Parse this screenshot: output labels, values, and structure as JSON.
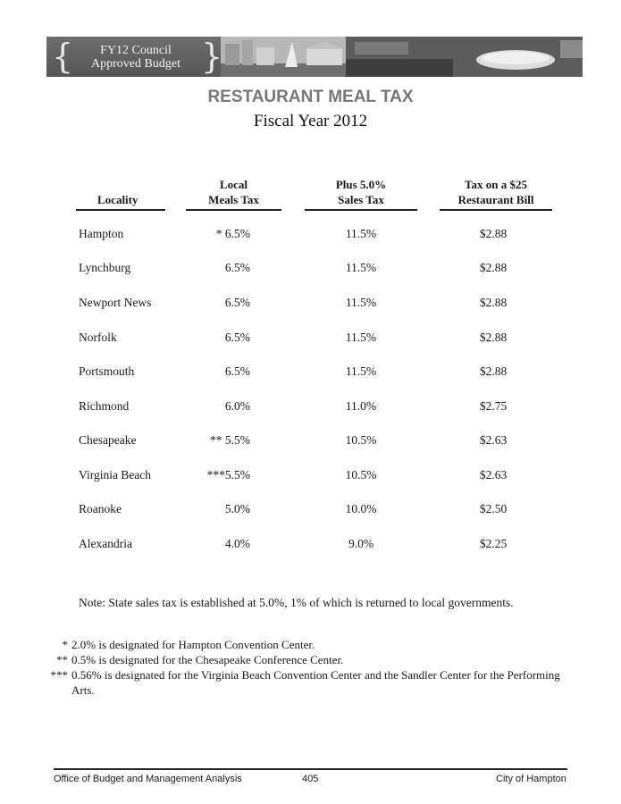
{
  "banner": {
    "line1": "FY12 Council",
    "line2": "Approved Budget"
  },
  "title": "RESTAURANT MEAL TAX",
  "subtitle": "Fiscal Year 2012",
  "columns": {
    "locality": "Locality",
    "meals_1": "Local",
    "meals_2": "Meals Tax",
    "sales_1": "Plus 5.0%",
    "sales_2": "Sales Tax",
    "bill_1": "Tax on a $25",
    "bill_2": "Restaurant Bill"
  },
  "rows": [
    {
      "locality": "Hampton",
      "meals": "* 6.5%",
      "sales": "11.5%",
      "bill": "$2.88"
    },
    {
      "locality": "Lynchburg",
      "meals": "6.5%",
      "sales": "11.5%",
      "bill": "$2.88"
    },
    {
      "locality": "Newport News",
      "meals": "6.5%",
      "sales": "11.5%",
      "bill": "$2.88"
    },
    {
      "locality": "Norfolk",
      "meals": "6.5%",
      "sales": "11.5%",
      "bill": "$2.88"
    },
    {
      "locality": "Portsmouth",
      "meals": "6.5%",
      "sales": "11.5%",
      "bill": "$2.88"
    },
    {
      "locality": "Richmond",
      "meals": "6.0%",
      "sales": "11.0%",
      "bill": "$2.75"
    },
    {
      "locality": "Chesapeake",
      "meals": "** 5.5%",
      "sales": "10.5%",
      "bill": "$2.63"
    },
    {
      "locality": "Virginia Beach",
      "meals": "***5.5%",
      "sales": "10.5%",
      "bill": "$2.63"
    },
    {
      "locality": "Roanoke",
      "meals": "5.0%",
      "sales": "10.0%",
      "bill": "$2.50"
    },
    {
      "locality": "Alexandria",
      "meals": "4.0%",
      "sales": "9.0%",
      "bill": "$2.25"
    }
  ],
  "note": "Note:  State sales tax is established at 5.0%, 1% of which is returned to local governments.",
  "footnotes": [
    {
      "mark": "*",
      "text": "2.0% is designated for Hampton Convention Center."
    },
    {
      "mark": "**",
      "text": "0.5% is designated for the Chesapeake Conference Center."
    },
    {
      "mark": "***",
      "text": "0.56% is designated for the Virginia Beach Convention Center and the Sandler Center for the Performing Arts."
    }
  ],
  "footer": {
    "left": "Office of Budget and Management Analysis",
    "page": "405",
    "right": "City of Hampton"
  }
}
